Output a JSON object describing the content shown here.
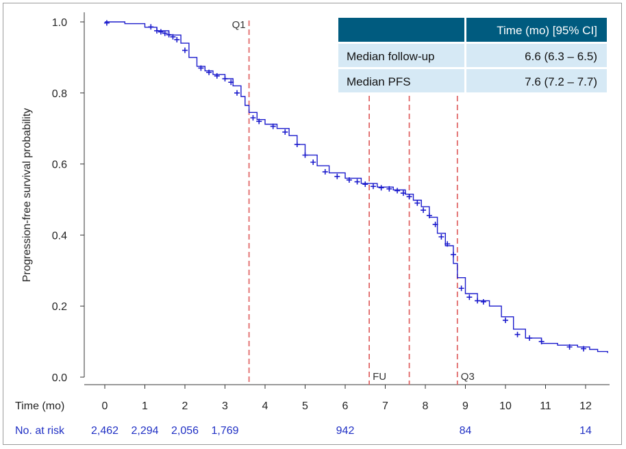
{
  "chart_data": {
    "type": "line",
    "ylabel": "Progression-free survival probability",
    "xlabel": "Time (mo)",
    "xlim": [
      -0.5,
      12.6
    ],
    "ylim": [
      0,
      1.0
    ],
    "x_ticks": [
      0,
      1,
      2,
      3,
      4,
      5,
      6,
      7,
      8,
      9,
      10,
      11,
      12
    ],
    "y_ticks": [
      0.0,
      0.2,
      0.4,
      0.6,
      0.8,
      1.0
    ],
    "y_tick_labels": [
      "0.0",
      "0.2",
      "0.4",
      "0.6",
      "0.8",
      "1.0"
    ],
    "series_color": "#1a1acc",
    "curve": {
      "x": [
        0,
        0.5,
        1.0,
        1.3,
        1.6,
        1.9,
        2.1,
        2.3,
        2.5,
        2.7,
        3.0,
        3.2,
        3.4,
        3.5,
        3.6,
        3.8,
        4.0,
        4.3,
        4.6,
        4.8,
        5.0,
        5.3,
        5.6,
        6.0,
        6.4,
        6.8,
        7.2,
        7.5,
        7.7,
        7.9,
        8.1,
        8.3,
        8.5,
        8.7,
        8.8,
        9.0,
        9.3,
        9.6,
        9.9,
        10.2,
        10.5,
        10.9,
        11.3,
        11.8,
        12.1,
        12.3,
        12.55
      ],
      "y": [
        1.0,
        0.995,
        0.985,
        0.975,
        0.963,
        0.94,
        0.9,
        0.875,
        0.862,
        0.852,
        0.84,
        0.82,
        0.79,
        0.765,
        0.745,
        0.725,
        0.712,
        0.7,
        0.68,
        0.655,
        0.625,
        0.595,
        0.575,
        0.56,
        0.545,
        0.535,
        0.527,
        0.515,
        0.498,
        0.48,
        0.45,
        0.405,
        0.37,
        0.32,
        0.28,
        0.235,
        0.215,
        0.2,
        0.17,
        0.135,
        0.11,
        0.095,
        0.09,
        0.085,
        0.078,
        0.072,
        0.068
      ]
    },
    "censor_marks": {
      "x": [
        0.05,
        1.15,
        1.3,
        1.4,
        1.5,
        1.6,
        1.7,
        1.8,
        2.0,
        2.4,
        2.6,
        2.8,
        3.0,
        3.15,
        3.3,
        3.7,
        3.85,
        4.2,
        4.5,
        4.8,
        5.0,
        5.2,
        5.5,
        5.8,
        6.1,
        6.3,
        6.5,
        6.7,
        6.9,
        7.1,
        7.3,
        7.45,
        7.6,
        7.8,
        7.95,
        8.1,
        8.25,
        8.4,
        8.55,
        8.7,
        8.9,
        9.1,
        9.3,
        9.45,
        10.0,
        10.3,
        10.6,
        10.9,
        11.6,
        11.95
      ],
      "y": [
        0.997,
        0.986,
        0.975,
        0.972,
        0.968,
        0.964,
        0.958,
        0.95,
        0.92,
        0.87,
        0.858,
        0.848,
        0.84,
        0.83,
        0.8,
        0.73,
        0.72,
        0.706,
        0.69,
        0.655,
        0.625,
        0.605,
        0.578,
        0.565,
        0.555,
        0.55,
        0.543,
        0.537,
        0.533,
        0.53,
        0.525,
        0.518,
        0.508,
        0.49,
        0.47,
        0.455,
        0.43,
        0.395,
        0.375,
        0.345,
        0.25,
        0.225,
        0.215,
        0.212,
        0.16,
        0.12,
        0.11,
        0.1,
        0.085,
        0.08
      ]
    },
    "reference_lines": [
      {
        "label": "Q1",
        "x": 3.6,
        "label_pos": "top"
      },
      {
        "label": "FU",
        "x": 6.6,
        "label_pos": "bottom"
      },
      {
        "label": "",
        "x": 7.6,
        "label_pos": "none"
      },
      {
        "label": "Q3",
        "x": 8.8,
        "label_pos": "bottom"
      }
    ],
    "reference_color": "#e06666"
  },
  "risk_table": {
    "label": "No. at risk",
    "entries": [
      {
        "x": 0,
        "value": "2,462"
      },
      {
        "x": 1,
        "value": "2,294"
      },
      {
        "x": 2,
        "value": "2,056"
      },
      {
        "x": 3,
        "value": "1,769"
      },
      {
        "x": 6,
        "value": "942"
      },
      {
        "x": 9,
        "value": "84"
      },
      {
        "x": 12,
        "value": "14"
      }
    ]
  },
  "summary_table": {
    "header": [
      "",
      "Time (mo) [95% CI]"
    ],
    "rows": [
      {
        "label": "Median follow-up",
        "value": "6.6 (6.3 – 6.5)"
      },
      {
        "label": "Median PFS",
        "value": "7.6 (7.2 – 7.7)"
      }
    ],
    "header_color": "#005b7f",
    "row_color": "#d6e9f5"
  }
}
